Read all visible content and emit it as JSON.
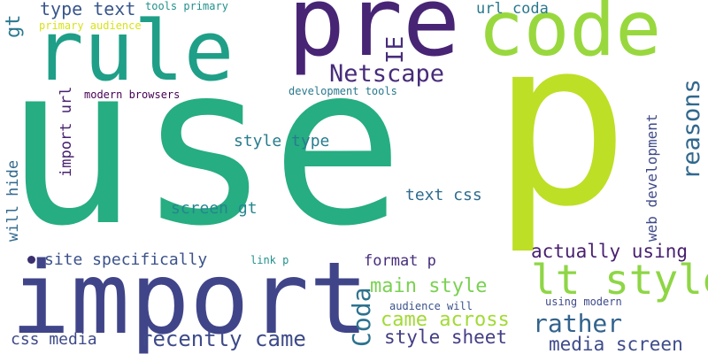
{
  "words": [
    {
      "text": "use",
      "color": "#26ad81",
      "size": 250,
      "vertical": false,
      "key": "use"
    },
    {
      "text": "p",
      "color": "#bddf26",
      "size": 260,
      "vertical": false,
      "key": "p"
    },
    {
      "text": "import",
      "color": "#404589",
      "size": 112,
      "vertical": false,
      "key": "import"
    },
    {
      "text": "pre",
      "color": "#482475",
      "size": 108,
      "vertical": false,
      "key": "pre"
    },
    {
      "text": "rule",
      "color": "#1f9f88",
      "size": 94,
      "vertical": false,
      "key": "rule"
    },
    {
      "text": "code",
      "color": "#98d83e",
      "size": 86,
      "vertical": false,
      "key": "code"
    },
    {
      "text": "lt style",
      "color": "#8ed645",
      "size": 46,
      "vertical": false,
      "key": "lt-style"
    },
    {
      "text": "Netscape",
      "color": "#472c7a",
      "size": 27,
      "vertical": false,
      "key": "netscape"
    },
    {
      "text": "reasons",
      "color": "#31688e",
      "size": 27,
      "vertical": true,
      "key": "reasons"
    },
    {
      "text": "IE",
      "color": "#472c7a",
      "size": 26,
      "vertical": true,
      "key": "ie"
    },
    {
      "text": "Coda",
      "color": "#2c728e",
      "size": 28,
      "vertical": true,
      "key": "coda"
    },
    {
      "text": "gt",
      "color": "#2a778e",
      "size": 22,
      "vertical": true,
      "key": "gt"
    },
    {
      "text": "type text",
      "color": "#39568c",
      "size": 20,
      "vertical": false,
      "key": "type-text"
    },
    {
      "text": "rather",
      "color": "#33638d",
      "size": 28,
      "vertical": false,
      "key": "rather"
    },
    {
      "text": "recently came",
      "color": "#3e4a89",
      "size": 24,
      "vertical": false,
      "key": "recently-came"
    },
    {
      "text": "came across",
      "color": "#a2da37",
      "size": 22,
      "vertical": false,
      "key": "came-across"
    },
    {
      "text": "main style",
      "color": "#7ad151",
      "size": 22,
      "vertical": false,
      "key": "main-style"
    },
    {
      "text": "style sheet",
      "color": "#433e85",
      "size": 21,
      "vertical": false,
      "key": "style-sheet"
    },
    {
      "text": "actually using",
      "color": "#481f70",
      "size": 21,
      "vertical": false,
      "key": "actually-using"
    },
    {
      "text": "media screen",
      "color": "#3e4c8a",
      "size": 21,
      "vertical": false,
      "key": "media-screen"
    },
    {
      "text": "site specifically",
      "color": "#3b528b",
      "size": 18,
      "vertical": false,
      "key": "site-specifically"
    },
    {
      "text": "css media",
      "color": "#3e4a89",
      "size": 18,
      "vertical": false,
      "key": "css-media"
    },
    {
      "text": "style type",
      "color": "#287c8e",
      "size": 18,
      "vertical": false,
      "key": "style-type"
    },
    {
      "text": "screen gt",
      "color": "#24868e",
      "size": 18,
      "vertical": false,
      "key": "screen-gt"
    },
    {
      "text": "text css",
      "color": "#2f6c8e",
      "size": 18,
      "vertical": false,
      "key": "text-css"
    },
    {
      "text": "format p",
      "color": "#472d7b",
      "size": 17,
      "vertical": false,
      "key": "format-p"
    },
    {
      "text": "url coda",
      "color": "#2a788e",
      "size": 17,
      "vertical": false,
      "key": "url-coda"
    },
    {
      "text": "import url",
      "color": "#482071",
      "size": 17,
      "vertical": true,
      "key": "import-url"
    },
    {
      "text": "will hide",
      "color": "#31688e",
      "size": 17,
      "vertical": true,
      "key": "will-hide"
    },
    {
      "text": "web development",
      "color": "#3e4a89",
      "size": 16,
      "vertical": true,
      "key": "web-development"
    },
    {
      "text": "modern browsers",
      "color": "#440154",
      "size": 12,
      "vertical": false,
      "key": "modern-browsers"
    },
    {
      "text": "development tools",
      "color": "#2a788e",
      "size": 12,
      "vertical": false,
      "key": "development-tools"
    },
    {
      "text": "tools primary",
      "color": "#21918c",
      "size": 12,
      "vertical": false,
      "key": "tools-primary"
    },
    {
      "text": "primary audience",
      "color": "#d8e219",
      "size": 12,
      "vertical": false,
      "key": "primary-audience"
    },
    {
      "text": "audience will",
      "color": "#3b528b",
      "size": 12,
      "vertical": false,
      "key": "audience-will"
    },
    {
      "text": "using modern",
      "color": "#3e4a89",
      "size": 12,
      "vertical": false,
      "key": "using-modern"
    },
    {
      "text": "link p",
      "color": "#21918c",
      "size": 12,
      "vertical": false,
      "key": "link-p"
    }
  ]
}
